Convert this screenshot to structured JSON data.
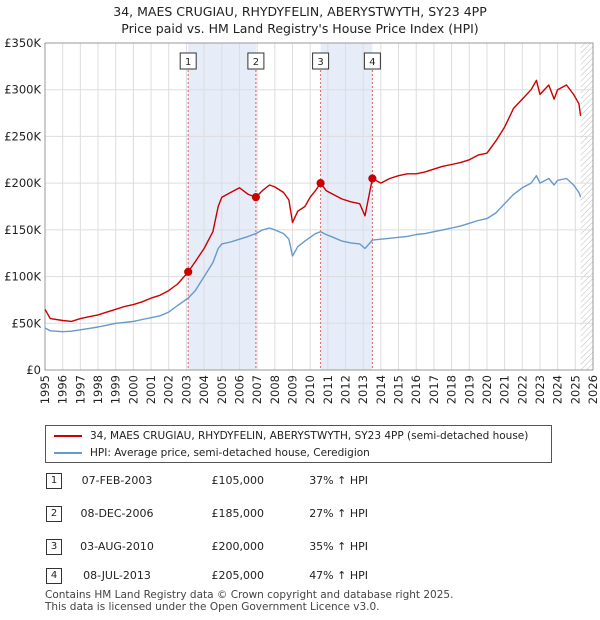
{
  "title_line1": "34, MAES CRUGIAU, RHYDYFELIN, ABERYSTWYTH, SY23 4PP",
  "title_line2": "Price paid vs. HM Land Registry's House Price Index (HPI)",
  "chart_data": {
    "type": "line",
    "xlim": [
      1995,
      2026
    ],
    "ylim": [
      0,
      350000
    ],
    "y_ticks": [
      0,
      50000,
      100000,
      150000,
      200000,
      250000,
      300000,
      350000
    ],
    "y_tick_labels": [
      "£0",
      "£50K",
      "£100K",
      "£150K",
      "£200K",
      "£250K",
      "£300K",
      "£350K"
    ],
    "x_ticks": [
      1995,
      1996,
      1997,
      1998,
      1999,
      2000,
      2001,
      2002,
      2003,
      2004,
      2005,
      2006,
      2007,
      2008,
      2009,
      2010,
      2011,
      2012,
      2013,
      2014,
      2015,
      2016,
      2017,
      2018,
      2019,
      2020,
      2021,
      2022,
      2023,
      2024,
      2025,
      2026
    ],
    "x_tick_labels": [
      "1995",
      "1996",
      "1997",
      "1998",
      "1999",
      "2000",
      "2001",
      "2002",
      "2003",
      "2004",
      "2005",
      "2006",
      "2007",
      "2008",
      "2009",
      "2010",
      "2011",
      "2012",
      "2013",
      "2014",
      "2015",
      "2016",
      "2017",
      "2018",
      "2019",
      "2020",
      "2021",
      "2022",
      "2023",
      "2024",
      "2025",
      "2026"
    ],
    "grid": true,
    "shaded_periods": [
      [
        2003.1,
        2006.93
      ],
      [
        2010.59,
        2013.52
      ]
    ],
    "data_end": 2025.3,
    "series": [
      {
        "name": "34, MAES CRUGIAU, RHYDYFELIN, ABERYSTWYTH, SY23 4PP (semi-detached house)",
        "color": "#cc0000",
        "points": [
          [
            1995.0,
            65000
          ],
          [
            1995.3,
            55000
          ],
          [
            1996.0,
            53000
          ],
          [
            1996.5,
            52000
          ],
          [
            1997.0,
            55000
          ],
          [
            1997.5,
            57000
          ],
          [
            1998.0,
            59000
          ],
          [
            1998.5,
            62000
          ],
          [
            1999.0,
            65000
          ],
          [
            1999.5,
            68000
          ],
          [
            2000.0,
            70000
          ],
          [
            2000.5,
            73000
          ],
          [
            2001.0,
            77000
          ],
          [
            2001.5,
            80000
          ],
          [
            2002.0,
            85000
          ],
          [
            2002.5,
            92000
          ],
          [
            2003.1,
            105000
          ],
          [
            2003.5,
            116000
          ],
          [
            2004.0,
            130000
          ],
          [
            2004.5,
            148000
          ],
          [
            2004.8,
            175000
          ],
          [
            2005.0,
            185000
          ],
          [
            2005.5,
            190000
          ],
          [
            2006.0,
            195000
          ],
          [
            2006.5,
            188000
          ],
          [
            2006.93,
            185000
          ],
          [
            2007.3,
            192000
          ],
          [
            2007.7,
            198000
          ],
          [
            2008.0,
            196000
          ],
          [
            2008.5,
            190000
          ],
          [
            2008.8,
            182000
          ],
          [
            2009.0,
            158000
          ],
          [
            2009.3,
            170000
          ],
          [
            2009.7,
            175000
          ],
          [
            2010.0,
            185000
          ],
          [
            2010.3,
            192000
          ],
          [
            2010.59,
            200000
          ],
          [
            2010.9,
            192000
          ],
          [
            2011.3,
            188000
          ],
          [
            2011.8,
            183000
          ],
          [
            2012.3,
            180000
          ],
          [
            2012.8,
            178000
          ],
          [
            2013.1,
            165000
          ],
          [
            2013.52,
            205000
          ],
          [
            2014.0,
            200000
          ],
          [
            2014.5,
            205000
          ],
          [
            2015.0,
            208000
          ],
          [
            2015.5,
            210000
          ],
          [
            2016.0,
            210000
          ],
          [
            2016.5,
            212000
          ],
          [
            2017.0,
            215000
          ],
          [
            2017.5,
            218000
          ],
          [
            2018.0,
            220000
          ],
          [
            2018.5,
            222000
          ],
          [
            2019.0,
            225000
          ],
          [
            2019.5,
            230000
          ],
          [
            2020.0,
            232000
          ],
          [
            2020.5,
            245000
          ],
          [
            2021.0,
            260000
          ],
          [
            2021.5,
            280000
          ],
          [
            2022.0,
            290000
          ],
          [
            2022.5,
            300000
          ],
          [
            2022.8,
            310000
          ],
          [
            2023.0,
            295000
          ],
          [
            2023.5,
            305000
          ],
          [
            2023.8,
            290000
          ],
          [
            2024.0,
            300000
          ],
          [
            2024.5,
            305000
          ],
          [
            2024.9,
            295000
          ],
          [
            2025.2,
            285000
          ],
          [
            2025.3,
            272000
          ]
        ]
      },
      {
        "name": "HPI: Average price, semi-detached house, Ceredigion",
        "color": "#6699cc",
        "points": [
          [
            1995.0,
            45000
          ],
          [
            1995.3,
            42000
          ],
          [
            1996.0,
            41000
          ],
          [
            1996.5,
            41500
          ],
          [
            1997.0,
            43000
          ],
          [
            1997.5,
            44500
          ],
          [
            1998.0,
            46000
          ],
          [
            1998.5,
            48000
          ],
          [
            1999.0,
            50000
          ],
          [
            1999.5,
            51000
          ],
          [
            2000.0,
            52000
          ],
          [
            2000.5,
            54000
          ],
          [
            2001.0,
            56000
          ],
          [
            2001.5,
            58000
          ],
          [
            2002.0,
            62000
          ],
          [
            2002.5,
            69000
          ],
          [
            2003.1,
            77000
          ],
          [
            2003.5,
            85000
          ],
          [
            2004.0,
            100000
          ],
          [
            2004.5,
            115000
          ],
          [
            2004.8,
            130000
          ],
          [
            2005.0,
            135000
          ],
          [
            2005.5,
            137000
          ],
          [
            2006.0,
            140000
          ],
          [
            2006.5,
            143000
          ],
          [
            2006.93,
            146000
          ],
          [
            2007.3,
            150000
          ],
          [
            2007.7,
            152000
          ],
          [
            2008.0,
            150000
          ],
          [
            2008.5,
            146000
          ],
          [
            2008.8,
            140000
          ],
          [
            2009.0,
            122000
          ],
          [
            2009.3,
            132000
          ],
          [
            2009.7,
            138000
          ],
          [
            2010.0,
            142000
          ],
          [
            2010.3,
            146000
          ],
          [
            2010.59,
            148000
          ],
          [
            2010.9,
            145000
          ],
          [
            2011.3,
            142000
          ],
          [
            2011.8,
            138000
          ],
          [
            2012.3,
            136000
          ],
          [
            2012.8,
            135000
          ],
          [
            2013.1,
            130000
          ],
          [
            2013.52,
            139000
          ],
          [
            2014.0,
            140000
          ],
          [
            2014.5,
            141000
          ],
          [
            2015.0,
            142000
          ],
          [
            2015.5,
            143000
          ],
          [
            2016.0,
            145000
          ],
          [
            2016.5,
            146000
          ],
          [
            2017.0,
            148000
          ],
          [
            2017.5,
            150000
          ],
          [
            2018.0,
            152000
          ],
          [
            2018.5,
            154000
          ],
          [
            2019.0,
            157000
          ],
          [
            2019.5,
            160000
          ],
          [
            2020.0,
            162000
          ],
          [
            2020.5,
            168000
          ],
          [
            2021.0,
            178000
          ],
          [
            2021.5,
            188000
          ],
          [
            2022.0,
            195000
          ],
          [
            2022.5,
            200000
          ],
          [
            2022.8,
            208000
          ],
          [
            2023.0,
            200000
          ],
          [
            2023.5,
            205000
          ],
          [
            2023.8,
            198000
          ],
          [
            2024.0,
            203000
          ],
          [
            2024.5,
            205000
          ],
          [
            2024.9,
            198000
          ],
          [
            2025.2,
            190000
          ],
          [
            2025.3,
            185000
          ]
        ]
      }
    ],
    "sales": [
      {
        "label": "1",
        "x": 2003.1,
        "price": 105000
      },
      {
        "label": "2",
        "x": 2006.93,
        "price": 185000
      },
      {
        "label": "3",
        "x": 2010.59,
        "price": 200000
      },
      {
        "label": "4",
        "x": 2013.52,
        "price": 205000
      }
    ]
  },
  "legend": {
    "property_label": "34, MAES CRUGIAU, RHYDYFELIN, ABERYSTWYTH, SY23 4PP (semi-detached house)",
    "hpi_label": "HPI: Average price, semi-detached house, Ceredigion"
  },
  "colors": {
    "property": "#cc0000",
    "hpi": "#6699cc"
  },
  "transactions": [
    {
      "num": "1",
      "date": "07-FEB-2003",
      "price": "£105,000",
      "hpi": "37% ↑ HPI"
    },
    {
      "num": "2",
      "date": "08-DEC-2006",
      "price": "£185,000",
      "hpi": "27% ↑ HPI"
    },
    {
      "num": "3",
      "date": "03-AUG-2010",
      "price": "£200,000",
      "hpi": "35% ↑ HPI"
    },
    {
      "num": "4",
      "date": "08-JUL-2013",
      "price": "£205,000",
      "hpi": "47% ↑ HPI"
    }
  ],
  "footer_line1": "Contains HM Land Registry data © Crown copyright and database right 2025.",
  "footer_line2": "This data is licensed under the Open Government Licence v3.0."
}
